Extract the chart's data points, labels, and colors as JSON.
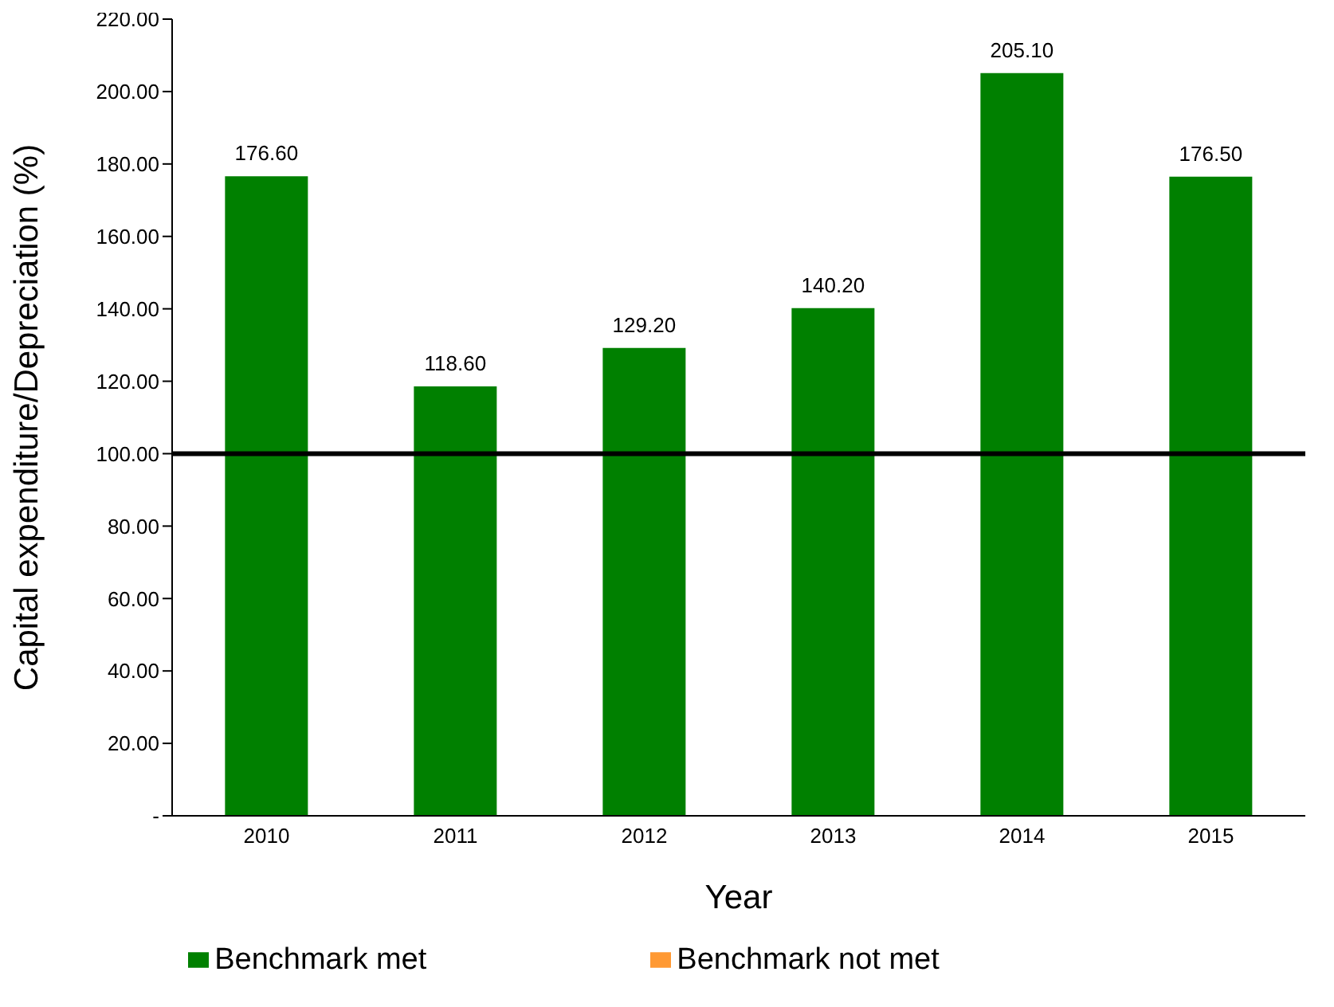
{
  "chart_data": {
    "type": "bar",
    "stacked": true,
    "xlabel": "Year",
    "ylabel": "Capital expenditure/Depreciation (%)",
    "categories": [
      "2010",
      "2011",
      "2012",
      "2013",
      "2014",
      "2015"
    ],
    "series": [
      {
        "name": "Benchmark met",
        "color": "#008000",
        "values": [
          176.6,
          118.6,
          129.2,
          140.2,
          205.1,
          176.5
        ],
        "value_labels": [
          "176.60",
          "118.60",
          "129.20",
          "140.20",
          "205.10",
          "176.50"
        ]
      },
      {
        "name": "Benchmark not met",
        "color": "#ff9933",
        "values": [
          null,
          null,
          null,
          null,
          null,
          null
        ]
      }
    ],
    "ylim": [
      0,
      220
    ],
    "yticks": [
      {
        "value": 0,
        "label": "-"
      },
      {
        "value": 20,
        "label": "20.00"
      },
      {
        "value": 40,
        "label": "40.00"
      },
      {
        "value": 60,
        "label": "60.00"
      },
      {
        "value": 80,
        "label": "80.00"
      },
      {
        "value": 100,
        "label": "100.00"
      },
      {
        "value": 120,
        "label": "120.00"
      },
      {
        "value": 140,
        "label": "140.00"
      },
      {
        "value": 160,
        "label": "160.00"
      },
      {
        "value": 180,
        "label": "180.00"
      },
      {
        "value": 200,
        "label": "200.00"
      },
      {
        "value": 220,
        "label": "220.00"
      }
    ],
    "ref_lines": [
      {
        "axis": "y",
        "value": 100,
        "color": "#000000"
      }
    ],
    "grid": false,
    "legend": "bottom"
  }
}
